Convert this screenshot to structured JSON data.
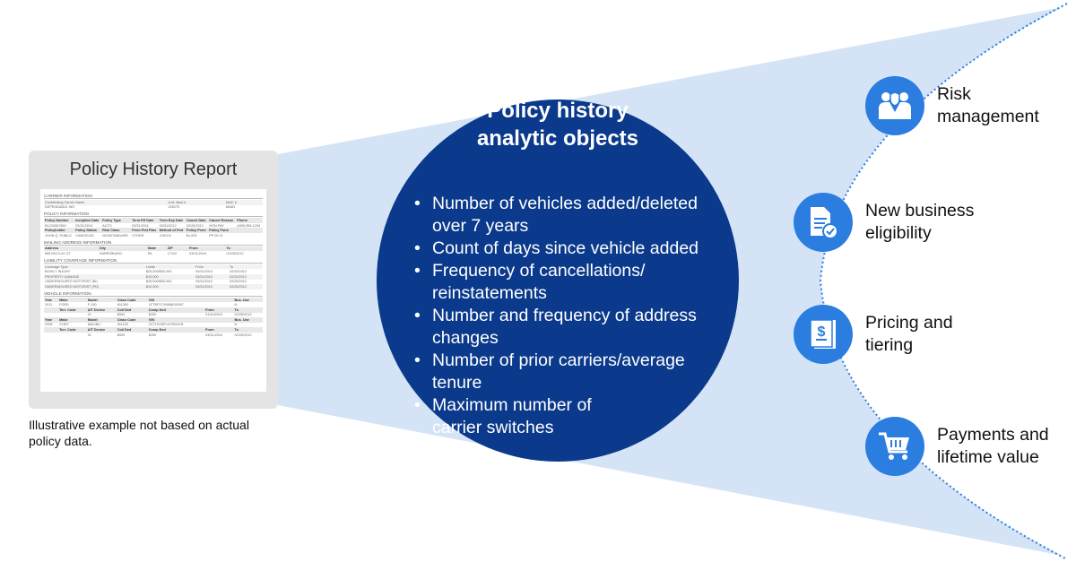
{
  "colors": {
    "circle": "#0b3a8c",
    "cone": "#d4e4f6",
    "icon": "#2b7de0",
    "arc": "#2b7de0"
  },
  "report": {
    "title": "Policy History Report",
    "sections": [
      {
        "title": "CARRIER INFORMATION",
        "rows": [
          [
            "Contributing Carrier Name",
            "A.M. Best #",
            "NAIC #"
          ],
          [
            "DEPENDABLE INS",
            "005279",
            "65481"
          ]
        ]
      },
      {
        "title": "POLICY INFORMATION",
        "rows": [
          [
            "Policy Number",
            "Inception Date",
            "Policy Type",
            "Term Eff Date",
            "Term Exp Date",
            "Cancel Date",
            "Cancel Reason",
            "Phone"
          ],
          [
            "B1234567890",
            "03/31/2010",
            "AUTO",
            "03/31/2011",
            "03/31/2012",
            "02/25/2012",
            "NON-PAY",
            "(469) 555-1234"
          ],
          [
            "Policyholder",
            "Policy Status",
            "Risk Class",
            "Prem Pmt Plan",
            "Method of Pmt",
            "Policy Prem",
            "Policy Form",
            ""
          ],
          [
            "JOHN Q. PUBLIC",
            "CANCELED",
            "NONSTANDARD",
            "OTHER",
            "CHECK",
            "$1,925",
            "PP 00 01",
            ""
          ]
        ]
      },
      {
        "title": "MAILING ADDRESS INFORMATION",
        "rows": [
          [
            "Address",
            "City",
            "State",
            "ZIP",
            "From",
            "To"
          ],
          [
            "565 MCCLAY ST",
            "HARRISBURG",
            "PA",
            "17110",
            "03/31/2010",
            "02/25/2012"
          ]
        ]
      },
      {
        "title": "LIABILITY COVERAGE INFORMATION",
        "rows": [
          [
            "Coverage Type",
            "Limits",
            "From",
            "To"
          ],
          [
            "BODILY INJURY",
            "$25,000/$50,000",
            "03/31/2010",
            "02/25/2012"
          ],
          [
            "PROPERTY DAMAGE",
            "$10,000",
            "03/31/2010",
            "02/25/2012"
          ],
          [
            "UNDERINSURED MOTORIST (BI)",
            "$25,000/$50,000",
            "03/31/2010",
            "02/25/2012"
          ],
          [
            "UNDERINSURED MOTORIST (PD)",
            "$10,000",
            "03/31/2010",
            "02/25/2012"
          ]
        ]
      },
      {
        "title": "VEHICLE INFORMATION",
        "rows": [
          [
            "Year",
            "Make",
            "Model",
            "Class Code",
            "VIN",
            "",
            "Bus. Use"
          ],
          [
            "2011",
            "FORD",
            "F-150",
            "811300",
            "1FTBF1TVM6B018367",
            "",
            "N"
          ],
          [
            "",
            "Terr. Code",
            "A/T Device",
            "Coll Ded",
            "Comp Ded",
            "From",
            "To"
          ],
          [
            "",
            "",
            "01",
            "$500",
            "$250",
            "01/10/2012",
            "02/25/2012"
          ],
          [
            "Year",
            "Make",
            "Model",
            "Class Code",
            "VIN",
            "",
            "Bus. Use"
          ],
          [
            "2008",
            "CHEV",
            "MALIBU",
            "811100",
            "2CTHV18F1472B1678",
            "",
            "N"
          ],
          [
            "",
            "Terr. Code",
            "A/T Device",
            "Coll Ded",
            "Comp Ded",
            "From",
            "To"
          ],
          [
            "",
            "",
            "01",
            "$500",
            "$250",
            "03/31/2010",
            "02/25/2012"
          ]
        ]
      }
    ],
    "caption": "Illustrative example not based on actual policy data."
  },
  "center": {
    "title": "Policy history analytic objects",
    "bullets": [
      "Number of vehicles added/deleted over 7 years",
      "Count of days since vehicle added",
      "Frequency of cancellations/ reinstatements",
      "Number and frequency of address changes",
      "Number of prior carriers/average tenure",
      "Maximum number of carrier switches"
    ]
  },
  "uses": [
    {
      "label": "Risk management",
      "icon": "handshake-shield-icon"
    },
    {
      "label": "New business eligibility",
      "icon": "document-check-icon"
    },
    {
      "label": "Pricing and tiering",
      "icon": "dollar-book-icon"
    },
    {
      "label": "Payments and lifetime value",
      "icon": "shopping-cart-icon"
    }
  ]
}
